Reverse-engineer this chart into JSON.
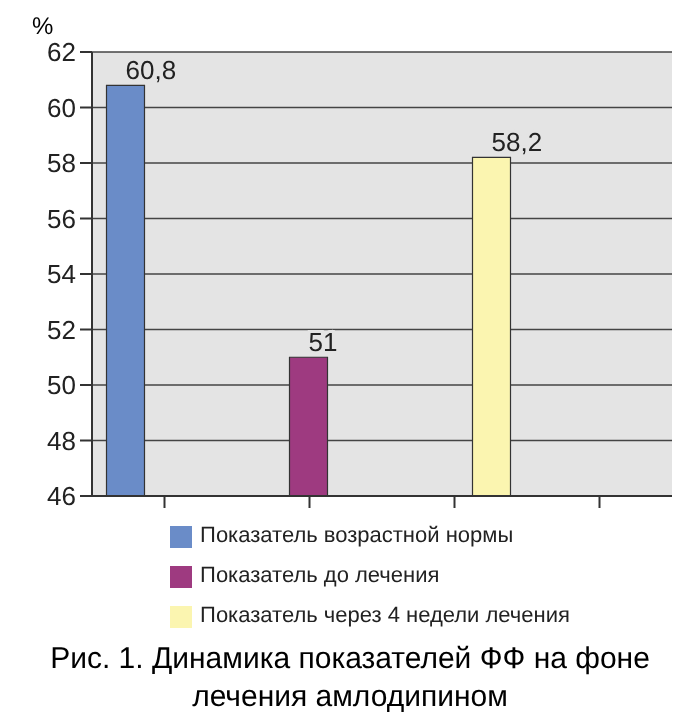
{
  "chart_data": {
    "type": "bar",
    "ylabel": "%",
    "categories": [
      null,
      null,
      null,
      null
    ],
    "series": [
      {
        "name": "Показатель возрастной нормы",
        "color": "#6a8cc8",
        "values": [
          60.8,
          null,
          null,
          null
        ],
        "value_labels": [
          "60,8",
          null,
          null,
          null
        ]
      },
      {
        "name": "Показатель до лечения",
        "color": "#9e3a80",
        "values": [
          null,
          51,
          null,
          null
        ],
        "value_labels": [
          null,
          "51",
          null,
          null
        ]
      },
      {
        "name": "Показатель через 4 недели лечения",
        "color": "#fbf5b0",
        "values": [
          null,
          null,
          58.2,
          null
        ],
        "value_labels": [
          null,
          null,
          "58,2",
          null
        ]
      }
    ],
    "ylim": [
      46,
      62
    ],
    "yticks": [
      46,
      48,
      50,
      52,
      54,
      56,
      58,
      60,
      62
    ],
    "grid": "y",
    "legend": "bottom",
    "annotations": [
      "Рис. 1. Динамика показателей ФФ на фоне лечения амлодипином"
    ]
  }
}
